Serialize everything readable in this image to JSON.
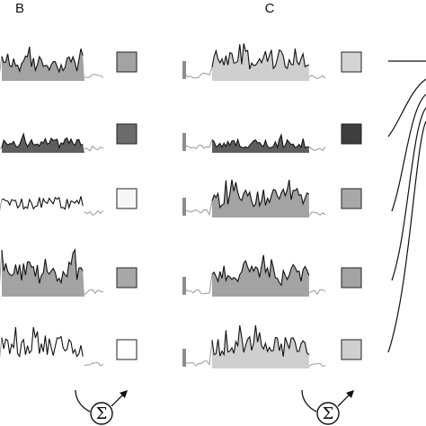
{
  "panels": {
    "b": {
      "label": "B"
    },
    "c": {
      "label": "C"
    }
  },
  "summation_symbol": "Σ",
  "colors": {
    "trace": "#111111",
    "trace_tail": "#9a9a9a",
    "fill_light": "#cfcfcf",
    "fill_medium": "#a3a3a3",
    "fill_dark": "#5e5e5e",
    "scale_bar": "#8c8c8c",
    "square_border": "#222222"
  },
  "rows": [
    {
      "b": {
        "fill": "medium",
        "square": "#a3a3a3"
      },
      "c": {
        "fill": "light",
        "square": "#d4d4d4"
      }
    },
    {
      "b": {
        "fill": "dark",
        "square": "#6b6b6b"
      },
      "c": {
        "fill": "dark",
        "square": "#3e3e3e"
      }
    },
    {
      "b": {
        "fill": "none",
        "square": "#f7f7f7"
      },
      "c": {
        "fill": "medium",
        "square": "#a8a8a8"
      }
    },
    {
      "b": {
        "fill": "medium",
        "square": "#a8a8a8"
      },
      "c": {
        "fill": "medium",
        "square": "#a3a3a3"
      }
    },
    {
      "b": {
        "fill": "none",
        "square": "#ffffff"
      },
      "c": {
        "fill": "light",
        "square": "#cfcfcf"
      }
    }
  ]
}
